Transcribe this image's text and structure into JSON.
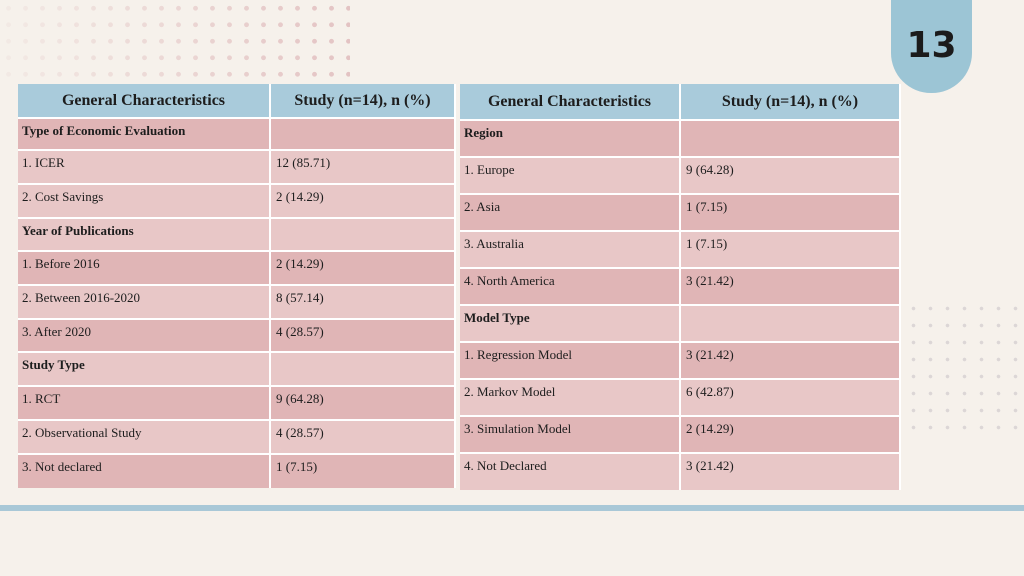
{
  "page_number": "13",
  "tables": {
    "left": {
      "headers": [
        "General Characteristics",
        "Study (n=14), n (%)"
      ],
      "rows": [
        {
          "label": "Type of Economic Evaluation",
          "value": ""
        },
        {
          "label": "1. ICER",
          "value": "12 (85.71)"
        },
        {
          "label": "2. Cost Savings",
          "value": "2 (14.29)"
        },
        {
          "label": "Year of Publications",
          "value": ""
        },
        {
          "label": "1. Before 2016",
          "value": "2 (14.29)"
        },
        {
          "label": "2. Between 2016-2020",
          "value": "8 (57.14)"
        },
        {
          "label": "3. After 2020",
          "value": "4 (28.57)"
        },
        {
          "label": "Study Type",
          "value": ""
        },
        {
          "label": "1. RCT",
          "value": "9 (64.28)"
        },
        {
          "label": "2. Observational Study",
          "value": "4 (28.57)"
        },
        {
          "label": "3. Not declared",
          "value": "1 (7.15)"
        }
      ]
    },
    "right": {
      "headers": [
        "General Characteristics",
        "Study (n=14), n (%)"
      ],
      "rows": [
        {
          "label": "Region",
          "value": ""
        },
        {
          "label": "1. Europe",
          "value": "9 (64.28)"
        },
        {
          "label": "2. Asia",
          "value": "1 (7.15)"
        },
        {
          "label": "3. Australia",
          "value": "1 (7.15)"
        },
        {
          "label": "4. North America",
          "value": "3 (21.42)"
        },
        {
          "label": "Model Type",
          "value": ""
        },
        {
          "label": "1. Regression Model",
          "value": "3 (21.42)"
        },
        {
          "label": "2. Markov Model",
          "value": "6 (42.87)"
        },
        {
          "label": "3. Simulation Model",
          "value": "2 (14.29)"
        },
        {
          "label": "4. Not Declared",
          "value": "3 (21.42)"
        }
      ]
    }
  },
  "colors": {
    "background": "#f6f1eb",
    "header_fill": "#a9cbdb",
    "row_dark": "#e0b5b6",
    "row_light": "#e8c7c7",
    "accent_tab": "#9cc5d5"
  }
}
